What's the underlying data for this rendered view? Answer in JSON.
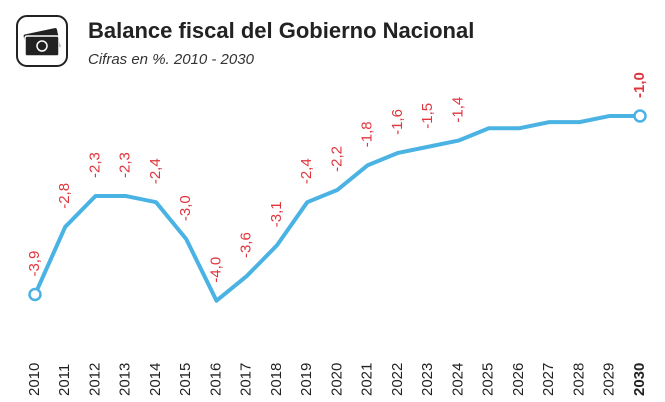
{
  "chart_data": {
    "type": "line",
    "title": "Balance fiscal del Gobierno Nacional",
    "subtitle": "Cifras en %. 2010 - 2030",
    "categories": [
      "2010",
      "2011",
      "2012",
      "2013",
      "2014",
      "2015",
      "2016",
      "2017",
      "2018",
      "2019",
      "2020",
      "2021",
      "2022",
      "2023",
      "2024",
      "2025",
      "2026",
      "2027",
      "2028",
      "2029",
      "2030"
    ],
    "series": [
      {
        "color": "#4ab3e3",
        "values": [
          -3.9,
          -2.8,
          -2.3,
          -2.3,
          -2.4,
          -3.0,
          -4.0,
          -3.6,
          -3.1,
          -2.4,
          -2.2,
          -1.8,
          -1.6,
          -1.5,
          -1.4,
          -1.2,
          -1.2,
          -1.1,
          -1.1,
          -1.0,
          -1.0
        ],
        "value_labels": [
          "-3,9",
          "-2,8",
          "-2,3",
          "-2,3",
          "-2,4",
          "-3,0",
          "-4,0",
          "-3,6",
          "-3,1",
          "-2,4",
          "-2,2",
          "-1,8",
          "-1,6",
          "-1,5",
          "-1,4",
          null,
          null,
          null,
          null,
          null,
          "-1,0"
        ],
        "label_color": "#e0353d"
      }
    ],
    "ylim": [
      -4.2,
      -0.7
    ]
  }
}
